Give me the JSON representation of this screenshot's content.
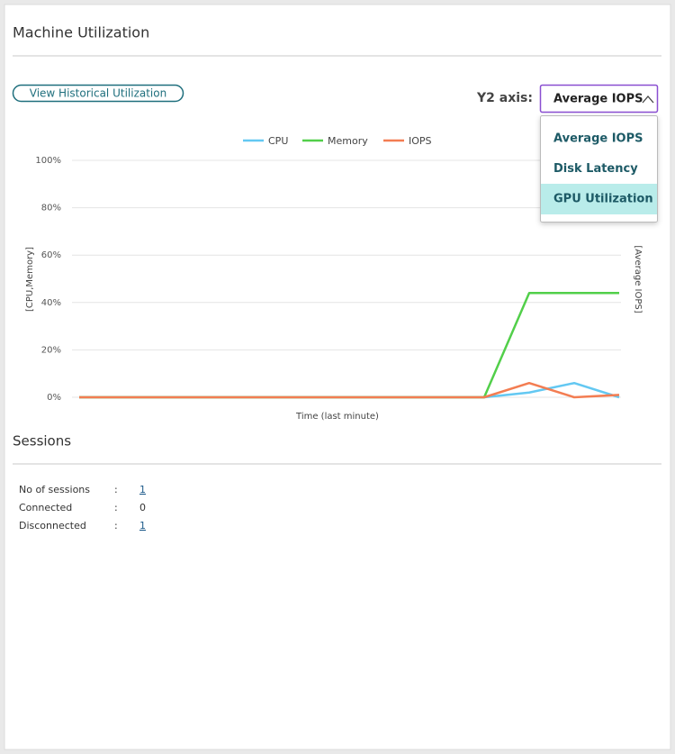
{
  "header": {
    "title": "Machine Utilization"
  },
  "button": "View Historical Utilization",
  "y2_selector": {
    "label": "Y2 axis:",
    "selected": "Average IOPS",
    "options": [
      "Average IOPS",
      "Disk Latency",
      "GPU Utilization"
    ],
    "highlighted": 2
  },
  "chart_data": {
    "type": "line",
    "xlabel": "Time (last minute)",
    "ylabel": "[CPU,Memory]",
    "y2label": "[Average IOPS]",
    "categories": [
      null,
      null,
      null,
      null,
      null,
      null,
      null,
      null,
      null,
      null,
      null,
      null,
      null
    ],
    "series": [
      {
        "name": "CPU",
        "color": "#63c8f2",
        "values": [
          0,
          0,
          0,
          0,
          0,
          0,
          0,
          0,
          0,
          0,
          2,
          6,
          0
        ]
      },
      {
        "name": "Memory",
        "color": "#52cf4a",
        "values": [
          0,
          0,
          0,
          0,
          0,
          0,
          0,
          0,
          0,
          0,
          44,
          44,
          44
        ]
      },
      {
        "name": "IOPS",
        "color": "#f37d52",
        "values": [
          0,
          0,
          0,
          0,
          0,
          0,
          0,
          0,
          0,
          0,
          6,
          0,
          1
        ]
      }
    ],
    "ylim": [
      0,
      100
    ],
    "yticks": [
      {
        "value": 0,
        "label": "0%"
      },
      {
        "value": 20,
        "label": "20%"
      },
      {
        "value": 40,
        "label": "40%"
      },
      {
        "value": 60,
        "label": "60%"
      },
      {
        "value": 80,
        "label": "80%"
      },
      {
        "value": 100,
        "label": "100%"
      }
    ],
    "grid": true,
    "legend": "top"
  },
  "sessions": {
    "title": "Sessions",
    "separator": ":",
    "rows": [
      {
        "label": "No of sessions",
        "value": "1"
      },
      {
        "label": "Connected",
        "value": "0"
      },
      {
        "label": "Disconnected",
        "value": "1"
      }
    ]
  }
}
